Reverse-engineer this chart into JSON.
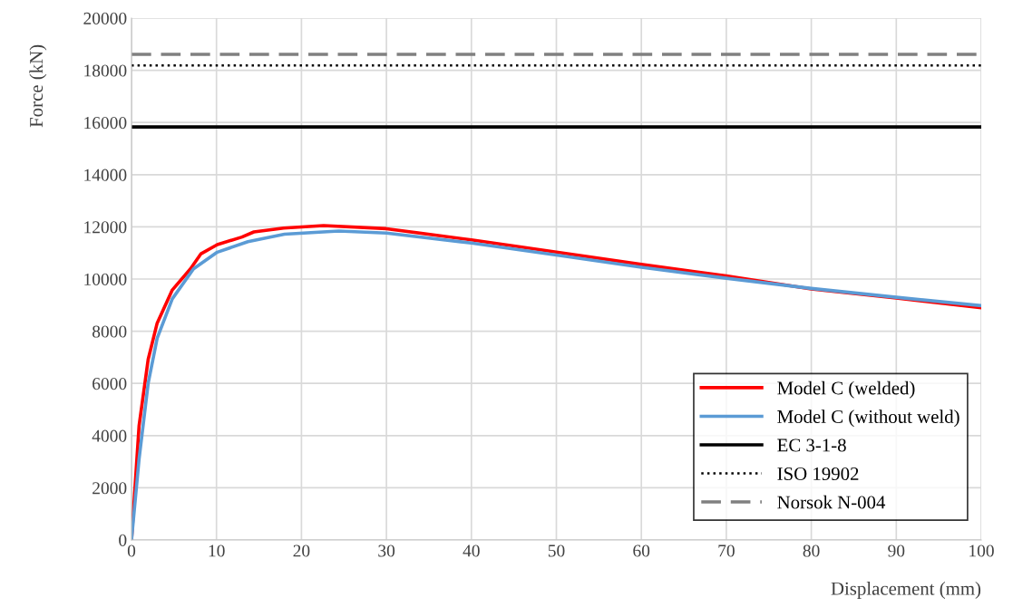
{
  "chart_data": {
    "type": "line",
    "xlabel": "Displacement (mm)",
    "ylabel": "Force (kN)",
    "xlim": [
      0,
      100
    ],
    "ylim": [
      0,
      20000
    ],
    "xticks": [
      0,
      10,
      20,
      30,
      40,
      50,
      60,
      70,
      80,
      90,
      100
    ],
    "yticks": [
      0,
      2000,
      4000,
      6000,
      8000,
      10000,
      12000,
      14000,
      16000,
      18000,
      20000
    ],
    "grid": true,
    "legend": "bottom right",
    "marker": "none",
    "series": [
      {
        "name": "Model C (welded)",
        "color": "#ff0000",
        "line_style": "solid",
        "x": [
          0,
          0.89,
          1.96,
          3.02,
          4.8,
          6.94,
          8.18,
          10.1,
          13.0,
          14.4,
          17.9,
          22.6,
          30,
          40,
          50,
          60,
          70,
          80,
          90,
          100
        ],
        "values": [
          0,
          4375,
          6920,
          8310,
          9580,
          10390,
          10970,
          11320,
          11610,
          11805,
          11955,
          12050,
          11930,
          11500,
          11030,
          10560,
          10120,
          9620,
          9270,
          8900
        ]
      },
      {
        "name": "Model C (without weld)",
        "color": "#5b9bd5",
        "line_style": "solid",
        "x": [
          0,
          0.89,
          1.96,
          3.02,
          4.8,
          7.3,
          10.1,
          13.7,
          18,
          24.4,
          30,
          40,
          50,
          60,
          70,
          80,
          90,
          100
        ],
        "values": [
          0,
          3100,
          6000,
          7730,
          9240,
          10390,
          11030,
          11430,
          11720,
          11840,
          11760,
          11380,
          10920,
          10450,
          10030,
          9640,
          9300,
          8980
        ]
      },
      {
        "name": "EC 3-1-8",
        "color": "#000000",
        "line_style": "solid",
        "x": [
          0,
          100
        ],
        "values": [
          15830,
          15830
        ]
      },
      {
        "name": "ISO 19902",
        "color": "#000000",
        "line_style": "dotted",
        "x": [
          0,
          100
        ],
        "values": [
          18190,
          18190
        ]
      },
      {
        "name": "Norsok N-004",
        "color": "#808080",
        "line_style": "dashed",
        "x": [
          0,
          100
        ],
        "values": [
          18610,
          18610
        ]
      }
    ]
  }
}
